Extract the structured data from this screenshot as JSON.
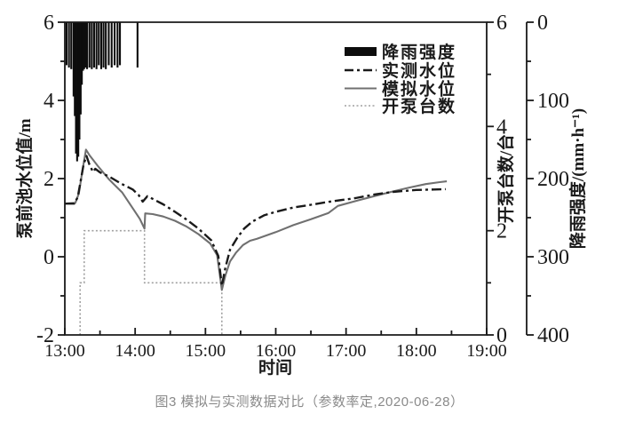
{
  "figure": {
    "caption": "图3 模拟与实测数据对比（参数率定,2020-06-28）"
  },
  "chart_data": {
    "type": "line",
    "title": "",
    "xlabel": "时间",
    "x_ticks": [
      "13:00",
      "14:00",
      "15:00",
      "16:00",
      "17:00",
      "18:00",
      "19:00"
    ],
    "x_minutes_range": [
      0,
      360
    ],
    "axes": {
      "left": {
        "label": "泵前池水位值/m",
        "range": [
          -2,
          6
        ],
        "major_ticks": [
          6,
          4,
          2,
          0,
          -2
        ],
        "minor_ticks": [
          5,
          3,
          1,
          -1
        ]
      },
      "right_inner": {
        "label": "开泵台数/台",
        "range": [
          0,
          6
        ],
        "major_ticks": [
          6,
          4,
          2,
          0
        ],
        "minor_ticks": [
          5,
          3,
          1
        ]
      },
      "right_outer": {
        "label": "降雨强度/(mm·h⁻¹)",
        "range": [
          0,
          400
        ],
        "inverted": true,
        "major_ticks": [
          0,
          100,
          200,
          300,
          400
        ],
        "minor_ticks": [
          50,
          150,
          250,
          350
        ]
      }
    },
    "legend": [
      {
        "label": "降雨强度",
        "style": "bar",
        "color": "#0d0d0d"
      },
      {
        "label": "实测水位",
        "style": "dashdot",
        "color": "#1a1a1a"
      },
      {
        "label": "模拟水位",
        "style": "solid",
        "color": "#707070"
      },
      {
        "label": "开泵台数",
        "style": "dotted",
        "color": "#a0a0a0"
      }
    ],
    "series": {
      "rainfall_bars": {
        "name": "降雨强度",
        "axis": "right_outer",
        "unit": "mm·h⁻¹",
        "note": "t = minutes after 13:00",
        "points": [
          [
            1.5,
            55
          ],
          [
            3.5,
            58
          ],
          [
            5.5,
            60
          ],
          [
            7.5,
            95
          ],
          [
            8.5,
            120
          ],
          [
            9.5,
            168
          ],
          [
            10.5,
            178
          ],
          [
            11.5,
            172
          ],
          [
            12.5,
            150
          ],
          [
            13.5,
            118
          ],
          [
            14.5,
            80
          ],
          [
            15.5,
            62
          ],
          [
            16.5,
            60
          ],
          [
            17.5,
            58
          ],
          [
            19,
            60
          ],
          [
            21,
            58
          ],
          [
            23,
            60
          ],
          [
            25,
            58
          ],
          [
            27,
            60
          ],
          [
            29,
            55
          ],
          [
            31,
            60
          ],
          [
            33,
            58
          ],
          [
            35,
            60
          ],
          [
            37.5,
            55
          ],
          [
            40,
            58
          ],
          [
            42.5,
            55
          ],
          [
            45,
            58
          ],
          [
            47,
            55
          ],
          [
            62,
            58
          ]
        ]
      },
      "measured_level": {
        "name": "实测水位",
        "axis": "left",
        "unit": "m",
        "points": [
          [
            0,
            1.36
          ],
          [
            8,
            1.36
          ],
          [
            11,
            1.52
          ],
          [
            14,
            2.02
          ],
          [
            16,
            2.36
          ],
          [
            18.5,
            2.58
          ],
          [
            21,
            2.36
          ],
          [
            24,
            2.17
          ],
          [
            26,
            2.25
          ],
          [
            30,
            2.16
          ],
          [
            38,
            2.05
          ],
          [
            48,
            1.87
          ],
          [
            58,
            1.72
          ],
          [
            63,
            1.58
          ],
          [
            66.5,
            1.41
          ],
          [
            70.5,
            1.55
          ],
          [
            77,
            1.45
          ],
          [
            84,
            1.34
          ],
          [
            94,
            1.15
          ],
          [
            104,
            0.95
          ],
          [
            114,
            0.72
          ],
          [
            125,
            0.42
          ],
          [
            131,
            0.02
          ],
          [
            134,
            -0.74
          ],
          [
            137,
            -0.28
          ],
          [
            141,
            0.18
          ],
          [
            147,
            0.48
          ],
          [
            153,
            0.72
          ],
          [
            160,
            0.9
          ],
          [
            170,
            1.06
          ],
          [
            180,
            1.15
          ],
          [
            195,
            1.26
          ],
          [
            210,
            1.33
          ],
          [
            226,
            1.41
          ],
          [
            248,
            1.5
          ],
          [
            264,
            1.59
          ],
          [
            280,
            1.66
          ],
          [
            300,
            1.71
          ],
          [
            315,
            1.72
          ],
          [
            325,
            1.73
          ]
        ]
      },
      "simulated_level": {
        "name": "模拟水位",
        "axis": "left",
        "unit": "m",
        "points": [
          [
            0,
            1.36
          ],
          [
            9,
            1.38
          ],
          [
            12,
            1.62
          ],
          [
            15,
            2.2
          ],
          [
            18,
            2.74
          ],
          [
            21,
            2.6
          ],
          [
            28,
            2.33
          ],
          [
            38,
            1.97
          ],
          [
            49,
            1.64
          ],
          [
            58,
            1.24
          ],
          [
            64,
            0.97
          ],
          [
            68,
            0.72
          ],
          [
            68.6,
            1.11
          ],
          [
            75,
            1.09
          ],
          [
            84,
            1.03
          ],
          [
            94,
            0.92
          ],
          [
            104,
            0.77
          ],
          [
            114,
            0.58
          ],
          [
            124,
            0.34
          ],
          [
            130,
            0.04
          ],
          [
            134,
            -0.85
          ],
          [
            137,
            -0.48
          ],
          [
            141,
            -0.12
          ],
          [
            146,
            0.1
          ],
          [
            152,
            0.3
          ],
          [
            158,
            0.41
          ],
          [
            164,
            0.46
          ],
          [
            180,
            0.63
          ],
          [
            195,
            0.81
          ],
          [
            210,
            0.96
          ],
          [
            225,
            1.12
          ],
          [
            233,
            1.3
          ],
          [
            250,
            1.44
          ],
          [
            264,
            1.55
          ],
          [
            280,
            1.67
          ],
          [
            294,
            1.77
          ],
          [
            308,
            1.86
          ],
          [
            320,
            1.91
          ],
          [
            326,
            1.93
          ]
        ]
      },
      "pumps_on": {
        "name": "开泵台数",
        "axis": "right_inner",
        "unit": "台",
        "step_vertices": [
          [
            13,
            0
          ],
          [
            13,
            1
          ],
          [
            16.5,
            1
          ],
          [
            16.5,
            2
          ],
          [
            68,
            2
          ],
          [
            68,
            1
          ],
          [
            134,
            1
          ],
          [
            134,
            0
          ]
        ]
      }
    }
  }
}
